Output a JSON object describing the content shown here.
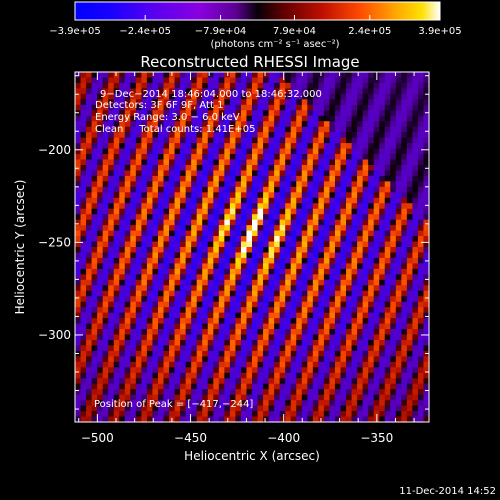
{
  "chart_data": {
    "type": "heatmap",
    "title": "Reconstructed RHESSI Image",
    "xlabel": "Heliocentric X (arcsec)",
    "ylabel": "Heliocentric Y (arcsec)",
    "xlim": [
      -512,
      -322
    ],
    "ylim": [
      -347,
      -158
    ],
    "x_ticks": [
      -500,
      -450,
      -400,
      -350
    ],
    "x_tick_labels": [
      "−500",
      "−450",
      "−400",
      "−350"
    ],
    "y_ticks": [
      -200,
      -250,
      -300
    ],
    "y_tick_labels": [
      "−200",
      "−250",
      "−300"
    ],
    "colorbar": {
      "min": -390000,
      "max": 390000,
      "tick_values": [
        -390000,
        -240000,
        -79000,
        79000,
        240000,
        390000
      ],
      "tick_labels": [
        "−3.9e+05",
        "−2.4e+05",
        "−7.9e+04",
        "7.9e+04",
        "2.4e+05",
        "3.9e+05"
      ],
      "unit_label": "(photons cm⁻² s⁻¹ asec⁻²)"
    },
    "annotations": [
      "9−Dec−2014 18:46:04.000 to 18:46:32.000",
      "Detectors: 3F 6F 9F, Att 1",
      "Energy Range: 3.0 − 6.0 keV",
      "Clean     Total counts: 1.41E+05"
    ],
    "peak_label": "Position of Peak = [−417,−244]",
    "peak": {
      "x": -417,
      "y": -244,
      "value": 390000
    },
    "grid": false
  },
  "footer": {
    "timestamp": "11-Dec-2014 14:52"
  }
}
